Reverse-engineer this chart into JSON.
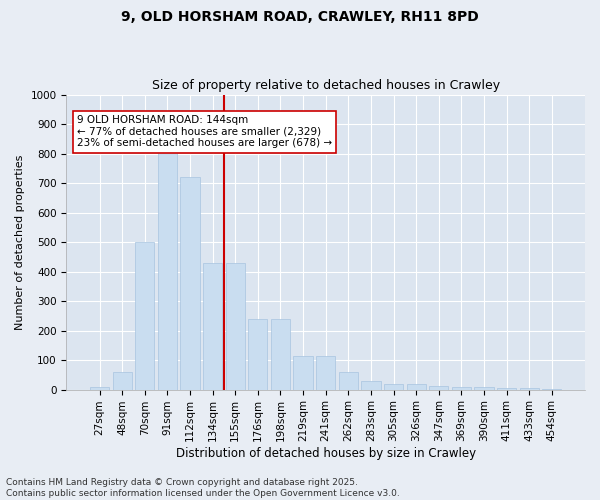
{
  "title": "9, OLD HORSHAM ROAD, CRAWLEY, RH11 8PD",
  "subtitle": "Size of property relative to detached houses in Crawley",
  "xlabel": "Distribution of detached houses by size in Crawley",
  "ylabel": "Number of detached properties",
  "categories": [
    "27sqm",
    "48sqm",
    "70sqm",
    "91sqm",
    "112sqm",
    "134sqm",
    "155sqm",
    "176sqm",
    "198sqm",
    "219sqm",
    "241sqm",
    "262sqm",
    "283sqm",
    "305sqm",
    "326sqm",
    "347sqm",
    "369sqm",
    "390sqm",
    "411sqm",
    "433sqm",
    "454sqm"
  ],
  "values": [
    8,
    58,
    500,
    820,
    720,
    430,
    430,
    240,
    240,
    115,
    115,
    60,
    30,
    20,
    18,
    12,
    10,
    8,
    5,
    5,
    3
  ],
  "bar_color": "#c9ddf0",
  "bar_edge_color": "#a8c4e0",
  "vline_x": 5.5,
  "vline_color": "#cc0000",
  "annotation_text": "9 OLD HORSHAM ROAD: 144sqm\n← 77% of detached houses are smaller (2,329)\n23% of semi-detached houses are larger (678) →",
  "annotation_box_facecolor": "#ffffff",
  "annotation_box_edge": "#cc0000",
  "ylim": [
    0,
    1000
  ],
  "yticks": [
    0,
    100,
    200,
    300,
    400,
    500,
    600,
    700,
    800,
    900,
    1000
  ],
  "bg_color": "#e8edf4",
  "plot_bg_color": "#dce5f0",
  "footer": "Contains HM Land Registry data © Crown copyright and database right 2025.\nContains public sector information licensed under the Open Government Licence v3.0.",
  "title_fontsize": 10,
  "subtitle_fontsize": 9,
  "xlabel_fontsize": 8.5,
  "ylabel_fontsize": 8,
  "tick_fontsize": 7.5,
  "annotation_fontsize": 7.5,
  "footer_fontsize": 6.5
}
